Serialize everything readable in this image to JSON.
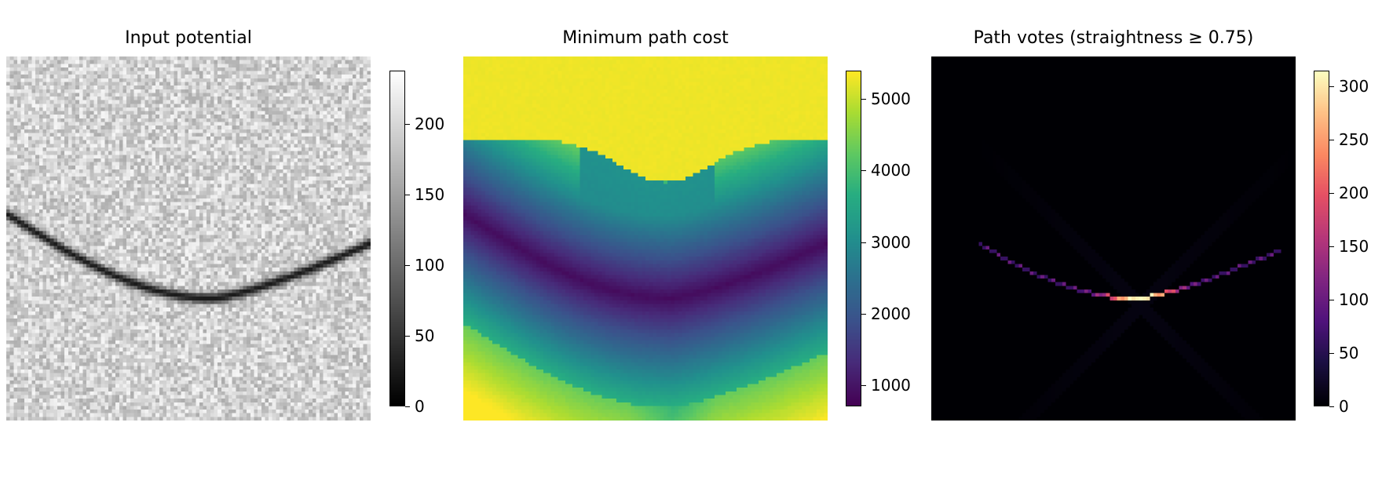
{
  "chart_data": [
    {
      "type": "heatmap",
      "title": "Input potential",
      "colormap": "gray",
      "colorbar": {
        "range": [
          0,
          238
        ],
        "ticks": [
          0,
          50,
          100,
          150,
          200
        ]
      },
      "description_of_field": "noisy light-gray background (~190) with a dark curved line (~20) running from left edge high, dipping to a minimum near center, rising toward right edge"
    },
    {
      "type": "heatmap",
      "title": "Minimum path cost",
      "colormap": "viridis",
      "colorbar": {
        "range": [
          700,
          5400
        ],
        "ticks": [
          1000,
          2000,
          3000,
          4000,
          5000
        ]
      }
    },
    {
      "type": "heatmap",
      "title": "Path votes (straightness ≥ 0.75)",
      "colormap": "magma",
      "colorbar": {
        "range": [
          0,
          315
        ],
        "ticks": [
          0,
          50,
          100,
          150,
          200,
          250,
          300
        ]
      }
    }
  ],
  "panels": [
    {
      "title": "Input potential",
      "ticks": [
        "0",
        "50",
        "100",
        "150",
        "200"
      ]
    },
    {
      "title": "Minimum path cost",
      "ticks": [
        "1000",
        "2000",
        "3000",
        "4000",
        "5000"
      ]
    },
    {
      "title": "Path votes (straightness ≥ 0.75)",
      "ticks": [
        "0",
        "50",
        "100",
        "150",
        "200",
        "250",
        "300"
      ]
    }
  ]
}
